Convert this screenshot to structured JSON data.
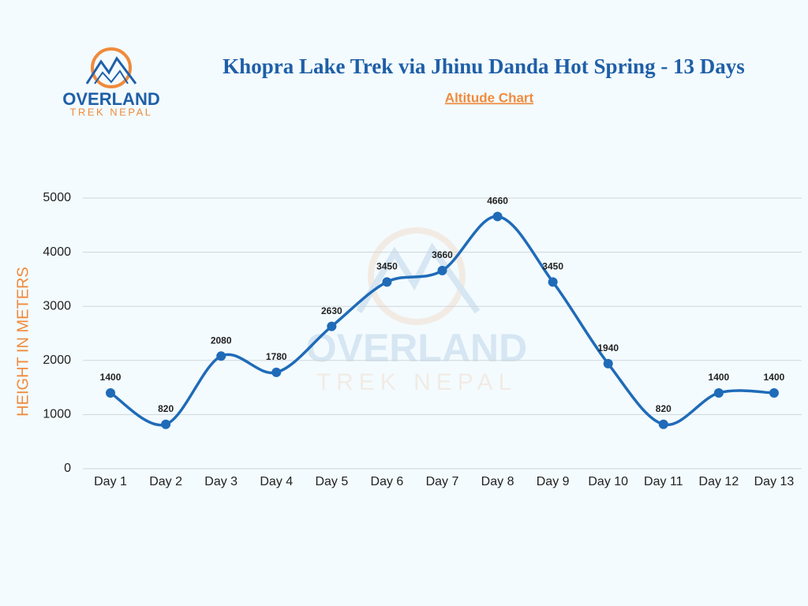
{
  "logo": {
    "name": "OVERLAND",
    "tagline": "TREK NEPAL"
  },
  "chart_data": {
    "type": "line",
    "title": "Khopra Lake Trek via Jhinu Danda Hot Spring - 13 Days",
    "subtitle": "Altitude Chart",
    "y_label": "HEIGHT IN METERS",
    "categories": [
      "Day 1",
      "Day 2",
      "Day 3",
      "Day 4",
      "Day 5",
      "Day 6",
      "Day 7",
      "Day 8",
      "Day 9",
      "Day 10",
      "Day 11",
      "Day 12",
      "Day 13"
    ],
    "values": [
      1400,
      820,
      2080,
      1780,
      2630,
      3450,
      3660,
      4660,
      3450,
      1940,
      820,
      1400,
      1400
    ],
    "color": "#1f6bb8",
    "ylim": [
      0,
      5000
    ],
    "yticks": [
      0,
      1000,
      2000,
      3000,
      4000,
      5000
    ],
    "grid": true,
    "smooth": true
  }
}
